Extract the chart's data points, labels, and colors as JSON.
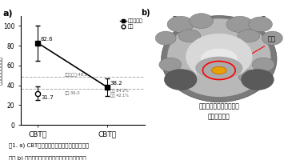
{
  "panel_a_label": "a)",
  "panel_b_label": "b)",
  "sad_pre_mean": 82.6,
  "sad_pre_err_low": 18,
  "sad_pre_err_high": 18,
  "sad_post_mean": 38.2,
  "sad_post_err_low": 9,
  "sad_post_err_high": 9,
  "hc_pre_mean": 31.7,
  "hc_pre_err_low": 7,
  "hc_pre_err_high": 7,
  "hline1": 48.2,
  "hline2": 36.0,
  "ylabel": "社交不安症の重症度",
  "xlabel_pre": "CBT前",
  "xlabel_post": "CBT後",
  "ylim_min": 0,
  "ylim_max": 110,
  "yticks": [
    0,
    20,
    40,
    60,
    80,
    100
  ],
  "legend_sad": "社交不安症",
  "legend_hc": "健常",
  "cutoff_label": "カットオフ:48.2",
  "hc_mean_label": "健常:36.0",
  "sad_post_label1": "応答 84.2%",
  "sad_post_label2": "寛解 42.1%",
  "sad_pre_label": "82.6",
  "sad_post_value_label": "38.2",
  "hc_pre_label": "31.7",
  "fig_caption1": "図1. a) CBTによる社交不安症の重症度の改善",
  "fig_caption2": "　　 b) 社交不安症状の改善量と関連する脳領域",
  "brain_left": "左",
  "brain_right": "右",
  "brain_label": "視床",
  "brain_sub1": "社交不安症状の改善量と",
  "brain_sub2": "関連する領域",
  "dashed_color": "#aaaaaa"
}
